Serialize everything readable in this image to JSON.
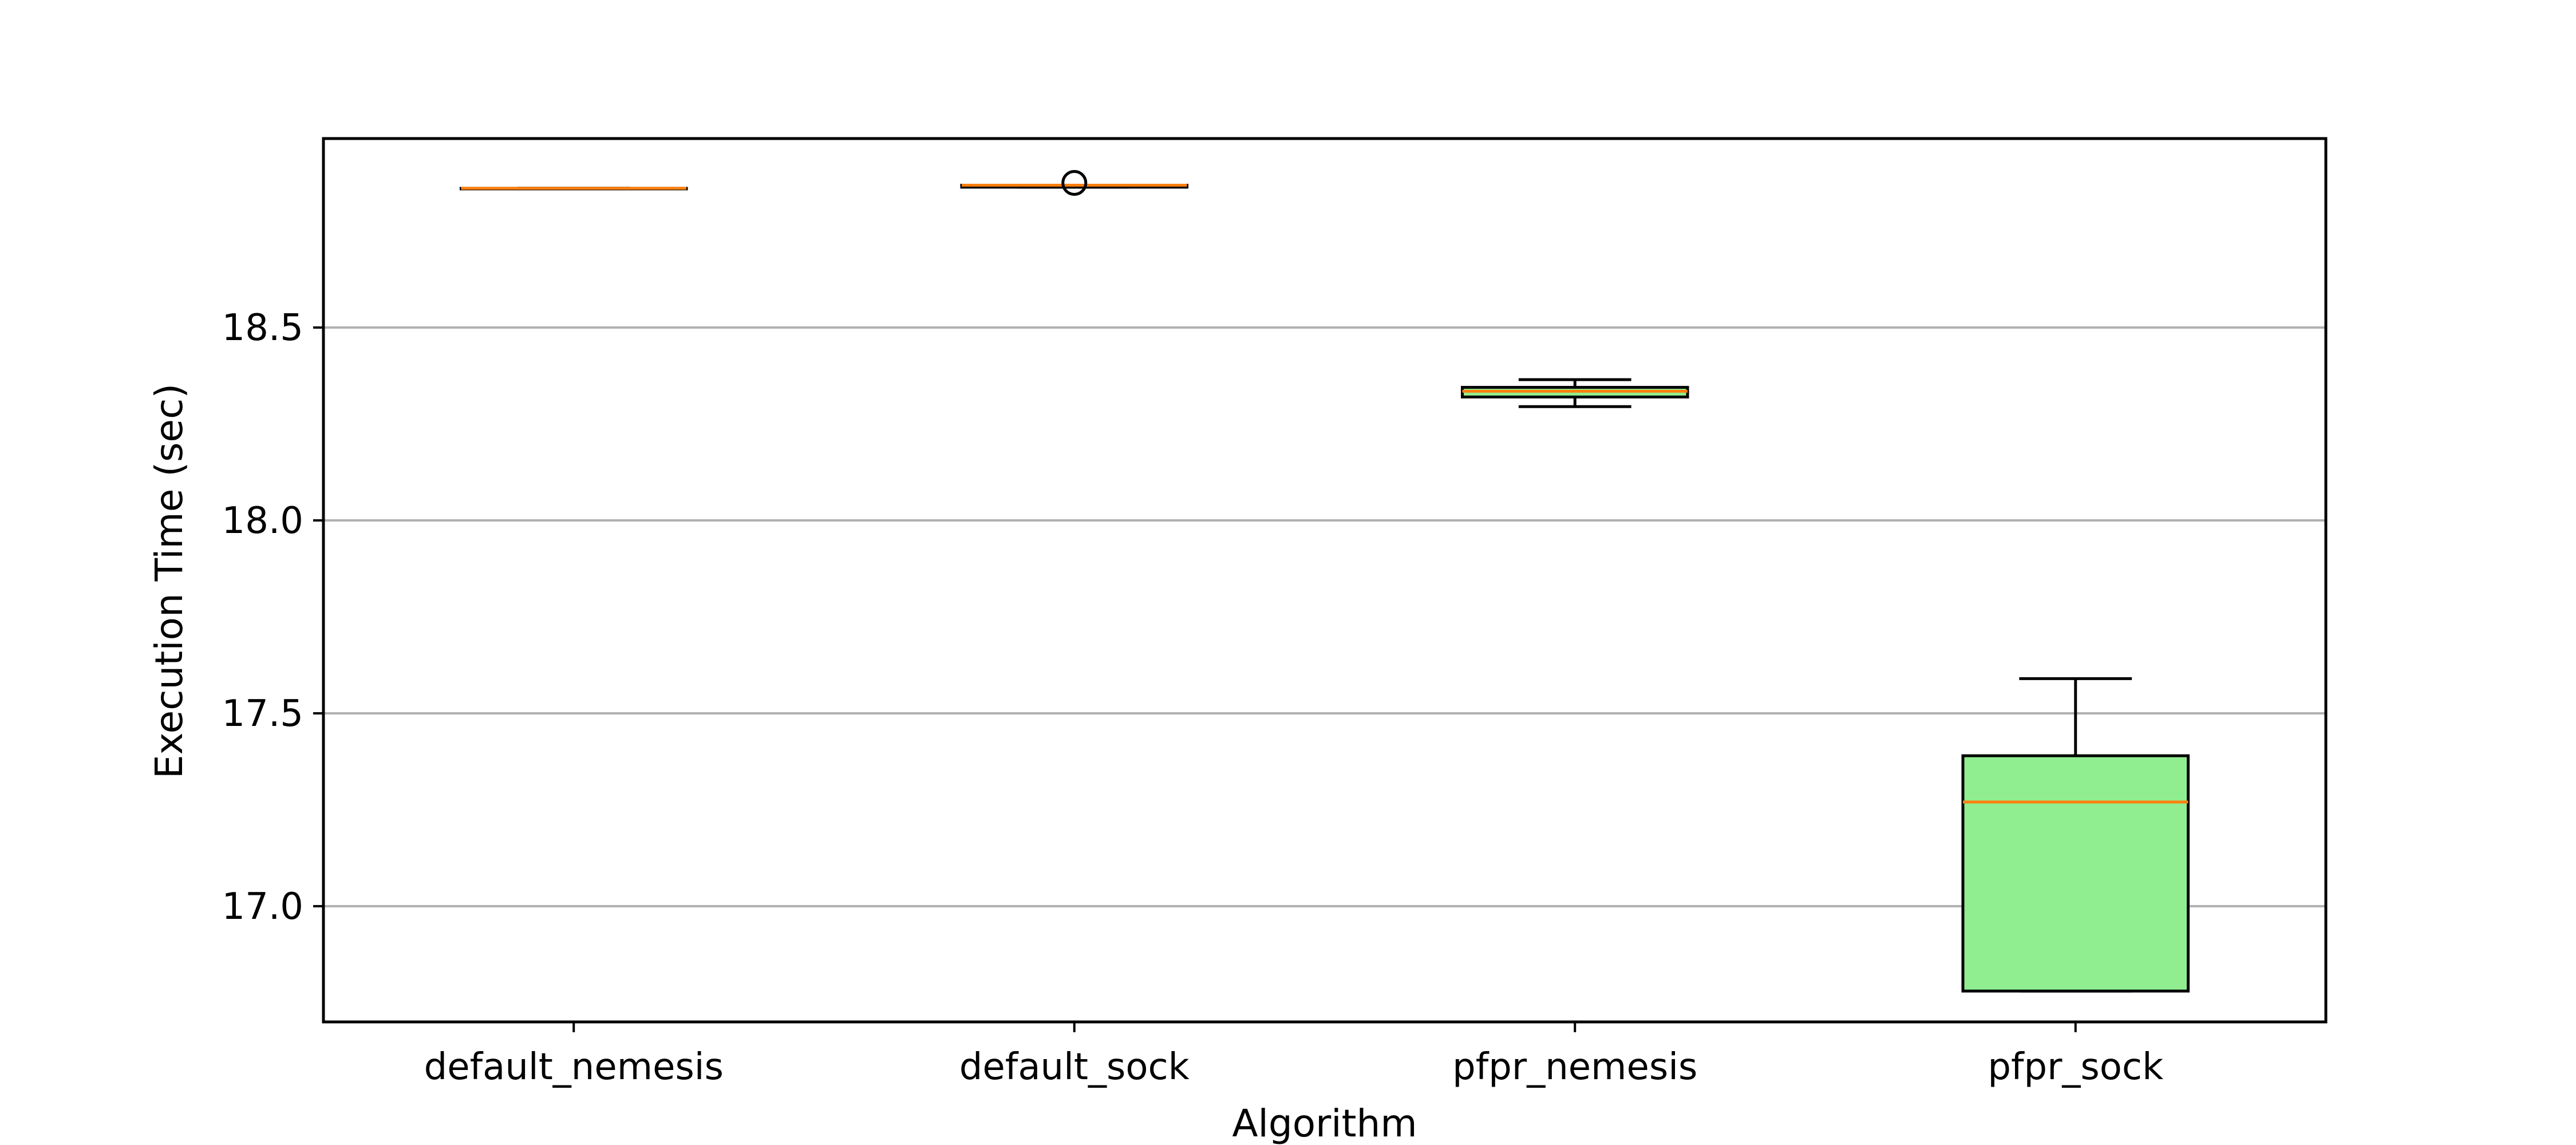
{
  "chart_data": {
    "type": "box",
    "title": "",
    "xlabel": "Algorithm",
    "ylabel": "Execution Time (sec)",
    "ylim": [
      16.7,
      18.99
    ],
    "yticks": [
      17.0,
      17.5,
      18.0,
      18.5
    ],
    "ytick_labels": [
      "17.0",
      "17.5",
      "18.0",
      "18.5"
    ],
    "grid": "y",
    "categories": [
      "default_nemesis",
      "default_sock",
      "pfpr_nemesis",
      "pfpr_sock"
    ],
    "boxes": [
      {
        "label": "default_nemesis",
        "whislo": 18.861,
        "q1": 18.861,
        "med": 18.861,
        "q3": 18.861,
        "whishi": 18.861,
        "fliers": []
      },
      {
        "label": "default_sock",
        "whislo": 18.864,
        "q1": 18.864,
        "med": 18.869,
        "q3": 18.869,
        "whishi": 18.869,
        "fliers": [
          18.875
        ]
      },
      {
        "label": "pfpr_nemesis",
        "whislo": 18.295,
        "q1": 18.32,
        "med": 18.335,
        "q3": 18.345,
        "whishi": 18.365,
        "fliers": []
      },
      {
        "label": "pfpr_sock",
        "whislo": 16.78,
        "q1": 16.78,
        "med": 17.27,
        "q3": 17.39,
        "whishi": 17.59,
        "fliers": []
      }
    ],
    "colors": {
      "box_fill": "#90ee90",
      "median": "#ff7f0e",
      "edge": "#000000",
      "grid": "#b0b0b0"
    }
  }
}
